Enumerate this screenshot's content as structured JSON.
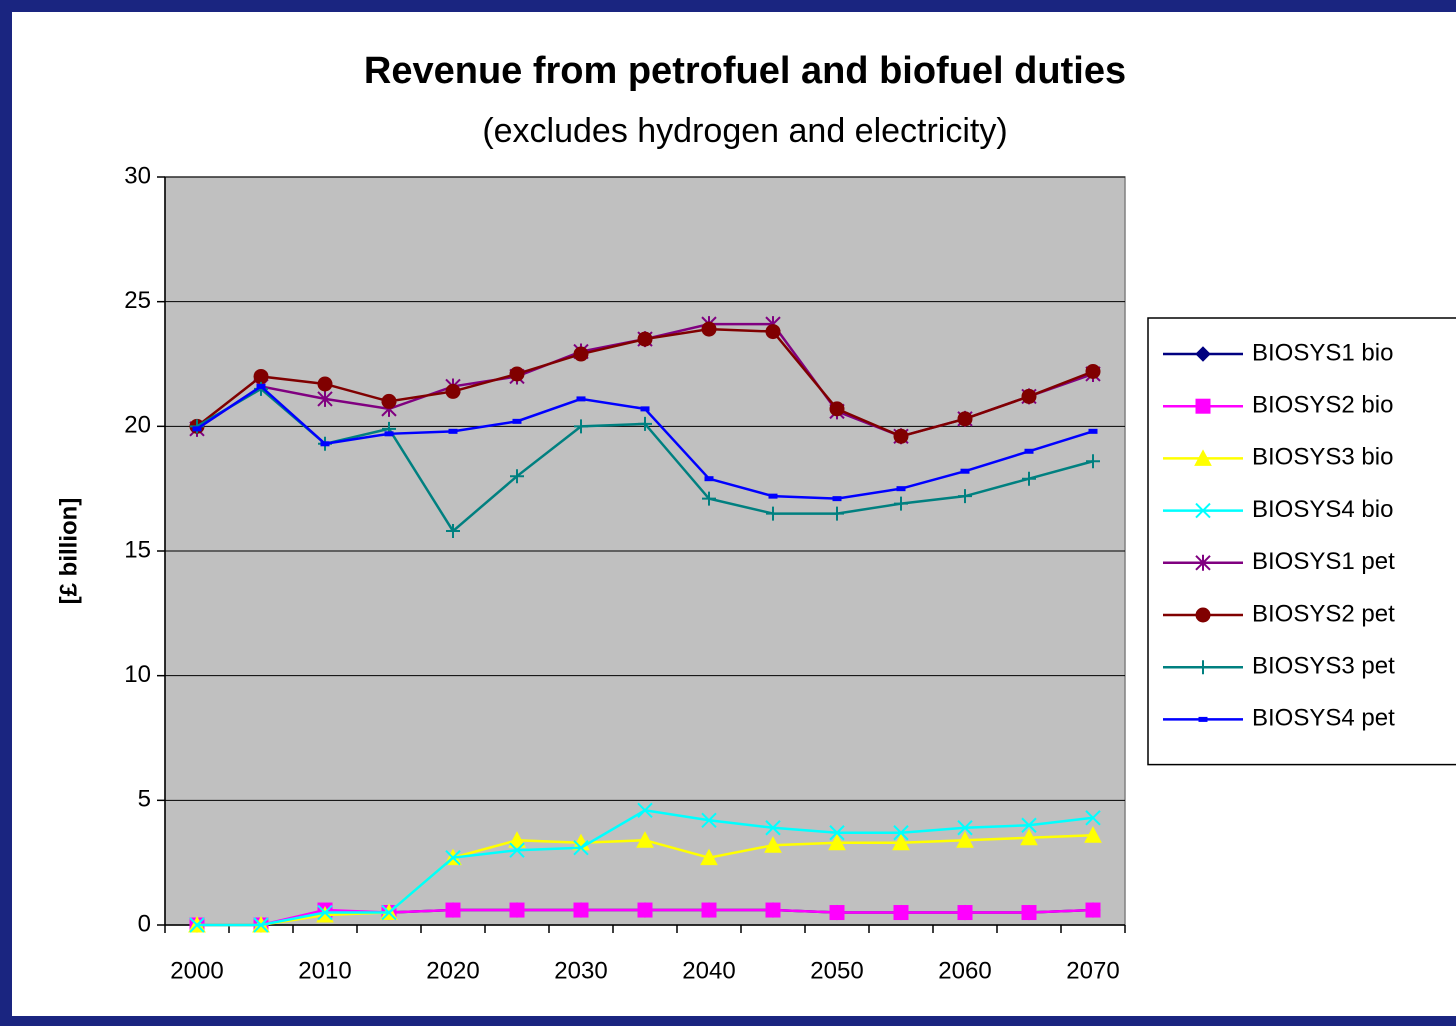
{
  "chart_data": {
    "type": "line",
    "title": "Revenue from petrofuel and biofuel duties",
    "subtitle": "(excludes hydrogen and electricity)",
    "y_label": "[£ billion]",
    "categories": [
      "2000",
      null,
      "2010",
      null,
      "2020",
      null,
      "2030",
      null,
      "2040",
      null,
      "2050",
      null,
      "2060",
      null,
      "2070"
    ],
    "ylim": [
      0,
      30
    ],
    "yticks": [
      0,
      5,
      10,
      15,
      20,
      25,
      30
    ],
    "grid": true,
    "legend": "right",
    "series": [
      {
        "name": "BIOSYS1 bio",
        "color": "#000080",
        "marker": "diamond",
        "values": [
          0,
          0,
          0.5,
          0.5,
          0.6,
          0.6,
          0.6,
          0.6,
          0.6,
          0.6,
          0.5,
          0.5,
          0.5,
          0.5,
          0.6
        ]
      },
      {
        "name": "BIOSYS2 bio",
        "color": "#ff00ff",
        "marker": "square",
        "values": [
          0,
          0,
          0.6,
          0.5,
          0.6,
          0.6,
          0.6,
          0.6,
          0.6,
          0.6,
          0.5,
          0.5,
          0.5,
          0.5,
          0.6
        ]
      },
      {
        "name": "BIOSYS3 bio",
        "color": "#ffff00",
        "marker": "triangle",
        "values": [
          0,
          0,
          0.4,
          0.5,
          2.7,
          3.4,
          3.3,
          3.4,
          2.7,
          3.2,
          3.3,
          3.3,
          3.4,
          3.5,
          3.6
        ]
      },
      {
        "name": "BIOSYS4 bio",
        "color": "#00ffff",
        "marker": "x",
        "values": [
          0,
          0,
          0.5,
          0.5,
          2.7,
          3.0,
          3.1,
          4.6,
          4.2,
          3.9,
          3.7,
          3.7,
          3.9,
          4.0,
          4.3
        ]
      },
      {
        "name": "BIOSYS1 pet",
        "color": "#800080",
        "marker": "star",
        "values": [
          19.9,
          21.6,
          21.1,
          20.7,
          21.6,
          22.0,
          23.0,
          23.5,
          24.1,
          24.1,
          20.6,
          19.6,
          20.3,
          21.2,
          22.1
        ]
      },
      {
        "name": "BIOSYS2 pet",
        "color": "#800000",
        "marker": "circle",
        "values": [
          20.0,
          22.0,
          21.7,
          21.0,
          21.4,
          22.1,
          22.9,
          23.5,
          23.9,
          23.8,
          20.7,
          19.6,
          20.3,
          21.2,
          22.2
        ]
      },
      {
        "name": "BIOSYS3 pet",
        "color": "#008080",
        "marker": "plus",
        "values": [
          20.0,
          21.5,
          19.3,
          19.9,
          15.8,
          18.0,
          20.0,
          20.1,
          17.1,
          16.5,
          16.5,
          16.9,
          17.2,
          17.9,
          18.6
        ]
      },
      {
        "name": "BIOSYS4 pet",
        "color": "#0000ff",
        "marker": "dash",
        "values": [
          19.9,
          21.6,
          19.3,
          19.7,
          19.8,
          20.2,
          21.1,
          20.7,
          17.9,
          17.2,
          17.1,
          17.5,
          18.2,
          19.0,
          19.8
        ]
      }
    ]
  }
}
